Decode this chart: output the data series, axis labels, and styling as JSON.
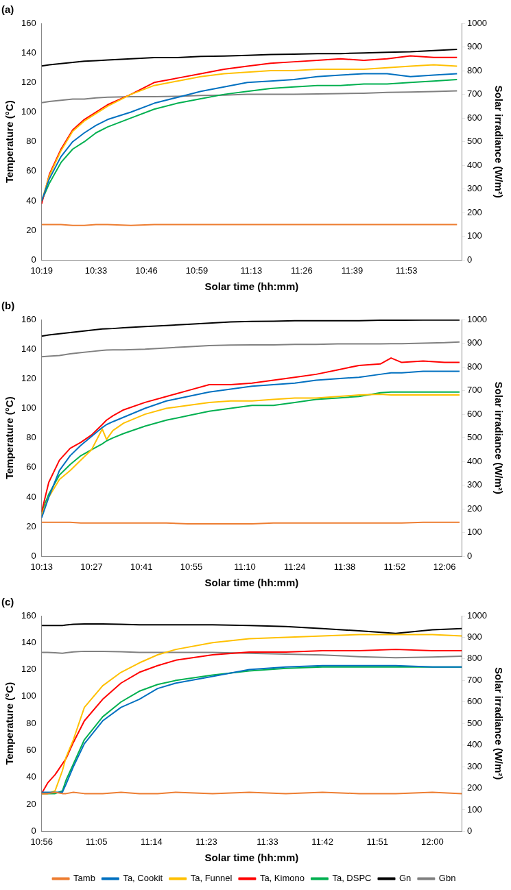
{
  "chart_data": [
    {
      "type": "line",
      "title": "(a)",
      "xlabel": "Solar time (hh:mm)",
      "ylabel": "Temperature (°C)",
      "y2label": "Solar irradiance (W/m²)",
      "grid": false,
      "legend": false,
      "marker": "none",
      "x": [
        10.3167,
        10.35,
        10.4,
        10.45,
        10.5,
        10.55,
        10.6,
        10.7,
        10.8,
        10.9,
        11.0,
        11.1,
        11.2,
        11.3,
        11.4,
        11.5,
        11.6,
        11.7,
        11.8,
        11.9,
        12.0,
        12.1
      ],
      "xlim": [
        10.3167,
        12.12
      ],
      "xticks": [
        {
          "value": 10.3167,
          "label": "10:19"
        },
        {
          "value": 10.55,
          "label": "10:33"
        },
        {
          "value": 10.7667,
          "label": "10:46"
        },
        {
          "value": 10.9833,
          "label": "10:59"
        },
        {
          "value": 11.2167,
          "label": "11:13"
        },
        {
          "value": 11.4333,
          "label": "11:26"
        },
        {
          "value": 11.65,
          "label": "11:39"
        },
        {
          "value": 11.8833,
          "label": "11:53"
        }
      ],
      "ylim": [
        0,
        160
      ],
      "yticks": [
        0,
        20,
        40,
        60,
        80,
        100,
        120,
        140,
        160
      ],
      "y2lim": [
        0,
        1000
      ],
      "y2ticks": [
        0,
        100,
        200,
        300,
        400,
        500,
        600,
        700,
        800,
        900,
        1000
      ],
      "series": [
        {
          "color": "#ed7d31",
          "values": [
            24,
            24,
            24,
            23.5,
            23.5,
            24,
            24,
            23.5,
            24,
            24,
            24,
            24,
            24,
            24,
            24,
            24,
            24,
            24,
            24,
            24,
            24,
            24
          ]
        },
        {
          "color": "#0070c0",
          "values": [
            40,
            55,
            70,
            80,
            86,
            91,
            95,
            100,
            106,
            110,
            114,
            117,
            120,
            121,
            122,
            124,
            125,
            126,
            126,
            124,
            125,
            126
          ]
        },
        {
          "color": "#ffc000",
          "values": [
            40,
            57,
            74,
            87,
            94,
            99,
            104,
            112,
            118,
            121,
            124,
            126,
            127,
            128,
            128,
            129,
            129,
            129,
            130,
            131,
            132,
            131
          ]
        },
        {
          "color": "#ff0000",
          "values": [
            38,
            58,
            75,
            88,
            95,
            100,
            105,
            112,
            120,
            123,
            126,
            129,
            131,
            133,
            134,
            135,
            136,
            135,
            136,
            138,
            137,
            137
          ]
        },
        {
          "color": "#00b050",
          "values": [
            40,
            52,
            66,
            75,
            80,
            86,
            90,
            96,
            102,
            106,
            109,
            112,
            114,
            116,
            117,
            118,
            118,
            119,
            119,
            120,
            121,
            122
          ]
        },
        {
          "color": "#000000",
          "axis": "y2",
          "values": [
            820,
            825,
            830,
            835,
            840,
            842,
            845,
            850,
            855,
            855,
            860,
            862,
            865,
            868,
            870,
            872,
            872,
            875,
            878,
            880,
            885,
            890
          ]
        },
        {
          "color": "#808080",
          "axis": "y2",
          "values": [
            665,
            670,
            675,
            680,
            680,
            685,
            688,
            690,
            690,
            692,
            695,
            697,
            700,
            700,
            700,
            702,
            703,
            705,
            708,
            710,
            712,
            715
          ]
        }
      ]
    },
    {
      "type": "line",
      "title": "(b)",
      "xlabel": "Solar time (hh:mm)",
      "ylabel": "Temperature (°C)",
      "y2label": "Solar irradiance (W/m²)",
      "grid": false,
      "legend": false,
      "marker": "none",
      "x": [
        10.2167,
        10.25,
        10.3,
        10.35,
        10.4,
        10.45,
        10.5,
        10.52,
        10.55,
        10.6,
        10.7,
        10.8,
        10.9,
        11.0,
        11.1,
        11.2,
        11.3,
        11.4,
        11.5,
        11.6,
        11.7,
        11.8,
        11.85,
        11.9,
        12.0,
        12.1,
        12.17
      ],
      "xlim": [
        10.2167,
        12.18
      ],
      "xticks": [
        {
          "value": 10.2167,
          "label": "10:13"
        },
        {
          "value": 10.45,
          "label": "10:27"
        },
        {
          "value": 10.6833,
          "label": "10:41"
        },
        {
          "value": 10.9167,
          "label": "10:55"
        },
        {
          "value": 11.1667,
          "label": "11:10"
        },
        {
          "value": 11.4,
          "label": "11:24"
        },
        {
          "value": 11.6333,
          "label": "11:38"
        },
        {
          "value": 11.8667,
          "label": "11:52"
        },
        {
          "value": 12.1,
          "label": "12:06"
        }
      ],
      "ylim": [
        0,
        160
      ],
      "yticks": [
        0,
        20,
        40,
        60,
        80,
        100,
        120,
        140,
        160
      ],
      "y2lim": [
        0,
        1000
      ],
      "y2ticks": [
        0,
        100,
        200,
        300,
        400,
        500,
        600,
        700,
        800,
        900,
        1000
      ],
      "series": [
        {
          "color": "#ed7d31",
          "values": [
            23,
            23,
            23,
            23,
            22.5,
            22.5,
            22.5,
            22.5,
            22.5,
            22.5,
            22.5,
            22.5,
            22,
            22,
            22,
            22,
            22.5,
            22.5,
            22.5,
            22.5,
            22.5,
            22.5,
            22.5,
            22.5,
            23,
            23,
            23
          ]
        },
        {
          "color": "#0070c0",
          "values": [
            26,
            40,
            58,
            68,
            75,
            81,
            87,
            89,
            91,
            94,
            100,
            105,
            108,
            111,
            113,
            115,
            116,
            117,
            119,
            120,
            121,
            123,
            124,
            124,
            125,
            125,
            125
          ]
        },
        {
          "color": "#ffc000",
          "values": [
            28,
            40,
            52,
            58,
            65,
            72,
            86,
            79,
            85,
            90,
            96,
            100,
            102,
            104,
            105,
            105,
            106,
            107,
            107,
            108,
            109,
            109.5,
            109,
            109,
            109,
            109,
            109
          ]
        },
        {
          "color": "#ff0000",
          "values": [
            30,
            50,
            65,
            73,
            77,
            82,
            89,
            92,
            95,
            99,
            104,
            108,
            112,
            116,
            116,
            117,
            119,
            121,
            123,
            126,
            129,
            130,
            134,
            131,
            132,
            131,
            131
          ]
        },
        {
          "color": "#00b050",
          "values": [
            30,
            42,
            55,
            62,
            68,
            72,
            76,
            78,
            80,
            83,
            88,
            92,
            95,
            98,
            100,
            102,
            102,
            104,
            106,
            107,
            108,
            110.5,
            111,
            111,
            111,
            111,
            111
          ]
        },
        {
          "color": "#000000",
          "axis": "y2",
          "values": [
            930,
            935,
            940,
            945,
            950,
            955,
            960,
            961,
            962,
            965,
            970,
            975,
            980,
            985,
            990,
            992,
            993,
            995,
            995,
            995,
            995,
            997,
            997,
            997,
            998,
            998,
            998
          ]
        },
        {
          "color": "#808080",
          "axis": "y2",
          "values": [
            843,
            845,
            848,
            855,
            860,
            865,
            870,
            871,
            872,
            872,
            875,
            880,
            885,
            890,
            892,
            893,
            893,
            895,
            895,
            897,
            897,
            897,
            898,
            898,
            900,
            902,
            905
          ]
        }
      ]
    },
    {
      "type": "line",
      "title": "(c)",
      "xlabel": "Solar time (hh:mm)",
      "ylabel": "Temperature (°C)",
      "y2label": "Solar irradiance (W/m²)",
      "grid": false,
      "legend": "bottom",
      "marker": "none",
      "x": [
        10.9333,
        10.95,
        10.97,
        10.99,
        11.0,
        11.02,
        11.05,
        11.1,
        11.15,
        11.2,
        11.25,
        11.3,
        11.4,
        11.5,
        11.6,
        11.7,
        11.8,
        11.9,
        12.0,
        12.08
      ],
      "xlim": [
        10.9333,
        12.08
      ],
      "xticks": [
        {
          "value": 10.9333,
          "label": "10:56"
        },
        {
          "value": 11.0833,
          "label": "11:05"
        },
        {
          "value": 11.2333,
          "label": "11:14"
        },
        {
          "value": 11.3833,
          "label": "11:23"
        },
        {
          "value": 11.55,
          "label": "11:33"
        },
        {
          "value": 11.7,
          "label": "11:42"
        },
        {
          "value": 11.85,
          "label": "11:51"
        },
        {
          "value": 12.0,
          "label": "12:00"
        }
      ],
      "ylim": [
        0,
        160
      ],
      "yticks": [
        0,
        20,
        40,
        60,
        80,
        100,
        120,
        140,
        160
      ],
      "y2lim": [
        0,
        1000
      ],
      "y2ticks": [
        0,
        100,
        200,
        300,
        400,
        500,
        600,
        700,
        800,
        900,
        1000
      ],
      "series": [
        {
          "name": "Tamb",
          "color": "#ed7d31",
          "values": [
            28,
            28,
            29,
            28,
            28,
            29,
            28,
            28,
            29,
            28,
            28,
            29,
            28,
            29,
            28,
            29,
            28,
            28,
            29,
            28
          ]
        },
        {
          "name": "Ta, Cookit",
          "color": "#0070c0",
          "values": [
            29,
            29,
            29,
            29,
            35,
            48,
            65,
            82,
            92,
            98,
            106,
            110,
            115,
            120,
            122,
            123,
            123,
            123,
            122,
            122
          ]
        },
        {
          "name": "Ta, Funnel",
          "color": "#ffc000",
          "values": [
            28,
            28,
            30,
            45,
            55,
            68,
            92,
            108,
            118,
            125,
            131,
            135,
            140,
            143,
            144,
            145,
            146,
            146,
            146,
            145
          ]
        },
        {
          "name": "Ta, Kimono",
          "color": "#ff0000",
          "values": [
            28,
            36,
            42,
            50,
            54,
            66,
            82,
            98,
            110,
            118,
            123,
            127,
            131,
            133,
            133,
            134,
            134,
            135,
            134,
            134
          ]
        },
        {
          "name": "Ta, DSPC",
          "color": "#00b050",
          "values": [
            28,
            28,
            28,
            30,
            38,
            50,
            68,
            85,
            96,
            104,
            109,
            112,
            116,
            119,
            121,
            122,
            122,
            122,
            122,
            122
          ]
        },
        {
          "name": "Gn",
          "color": "#000000",
          "axis": "y2",
          "values": [
            955,
            955,
            955,
            955,
            957,
            960,
            962,
            962,
            960,
            958,
            958,
            958,
            958,
            955,
            950,
            940,
            930,
            918,
            935,
            940
          ]
        },
        {
          "name": "Gbn",
          "color": "#808080",
          "axis": "y2",
          "values": [
            830,
            830,
            828,
            826,
            828,
            832,
            835,
            835,
            833,
            830,
            830,
            830,
            830,
            826,
            822,
            818,
            810,
            805,
            808,
            812
          ]
        }
      ]
    }
  ]
}
